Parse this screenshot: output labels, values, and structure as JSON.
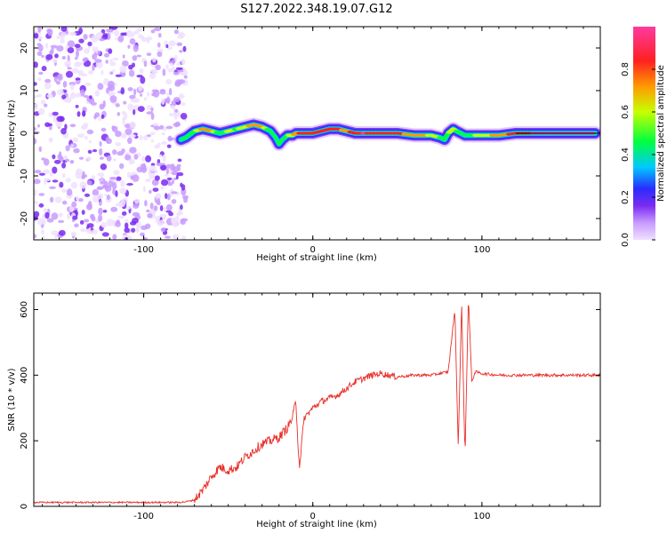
{
  "figure_title": "S127.2022.348.19.07.G12",
  "colors": {
    "axis": "#000000",
    "snr_line": "#e8302a",
    "scatter": "#7a2cf0",
    "colormap": [
      "#f0e0ff",
      "#c89bff",
      "#7a2cf0",
      "#2a2cff",
      "#00c8ff",
      "#00ff40",
      "#c8ff00",
      "#ff9a00",
      "#ff2020",
      "#ff3aa0"
    ]
  },
  "chart_data": [
    {
      "type": "heatmap",
      "title": "",
      "xlabel": "Height of straight line (km)",
      "ylabel": "Frequency (Hz)",
      "xlim": [
        -165,
        170
      ],
      "ylim": [
        -25,
        25
      ],
      "xticks": [
        -100,
        0,
        100
      ],
      "yticks": [
        -20,
        -10,
        0,
        10,
        20
      ],
      "noise_region_x": [
        -165,
        -75
      ],
      "ridge": {
        "x": [
          -78,
          -75,
          -70,
          -65,
          -60,
          -55,
          -50,
          -45,
          -40,
          -35,
          -30,
          -25,
          -22,
          -20,
          -18,
          -15,
          -12,
          -10,
          -5,
          0,
          5,
          10,
          15,
          20,
          25,
          30,
          40,
          50,
          60,
          70,
          75,
          78,
          80,
          83,
          85,
          90,
          95,
          100,
          110,
          120,
          130,
          140,
          150,
          160,
          167
        ],
        "freq": [
          -1.5,
          -1,
          0.5,
          1,
          0.5,
          0,
          0.5,
          1,
          1.5,
          2,
          1.5,
          0.5,
          -1,
          -2.5,
          -1.5,
          -0.5,
          -0.5,
          0,
          0,
          0,
          0.5,
          1,
          1,
          0.5,
          0,
          0,
          0,
          0,
          -0.5,
          -0.5,
          -1,
          -1.5,
          0,
          1,
          0.5,
          -0.5,
          -0.5,
          -0.5,
          -0.5,
          0,
          0,
          0,
          0,
          0,
          0
        ],
        "amplitude": [
          0.3,
          0.5,
          0.6,
          0.8,
          0.75,
          0.5,
          0.65,
          0.6,
          0.7,
          0.8,
          0.75,
          0.5,
          0.4,
          0.3,
          0.4,
          0.6,
          0.7,
          0.8,
          0.9,
          0.85,
          0.9,
          0.9,
          0.85,
          0.8,
          0.9,
          0.95,
          0.9,
          0.85,
          0.8,
          0.7,
          0.6,
          0.5,
          0.6,
          0.7,
          0.6,
          0.5,
          0.6,
          0.7,
          0.75,
          0.9,
          0.95,
          0.95,
          0.95,
          0.95,
          0.95
        ]
      }
    },
    {
      "type": "colorbar",
      "label": "Normalized spectral amplitude",
      "range": [
        0,
        1
      ],
      "ticks": [
        0.0,
        0.2,
        0.4,
        0.6,
        0.8
      ],
      "tick_labels": [
        "0.0",
        "0.2",
        "0.4",
        "0.6",
        "0.8"
      ]
    },
    {
      "type": "line",
      "title": "",
      "xlabel": "Height of straight line (km)",
      "ylabel": "SNR (10 * v/v)",
      "xlim": [
        -165,
        170
      ],
      "ylim": [
        0,
        650
      ],
      "xticks": [
        -100,
        0,
        100
      ],
      "yticks": [
        0,
        200,
        400,
        600
      ],
      "series": [
        {
          "x": [
            -165,
            -150,
            -130,
            -110,
            -90,
            -80,
            -75,
            -70,
            -65,
            -60,
            -55,
            -50,
            -45,
            -40,
            -35,
            -30,
            -25,
            -20,
            -15,
            -12,
            -10,
            -8,
            -5,
            0,
            5,
            10,
            15,
            20,
            25,
            30,
            35,
            40,
            45,
            50,
            60,
            70,
            80,
            84,
            86,
            88,
            90,
            92,
            94,
            96,
            100,
            110,
            120,
            130,
            140,
            150,
            160,
            170
          ],
          "values": [
            12,
            12,
            12,
            12,
            12,
            12,
            14,
            20,
            50,
            90,
            120,
            110,
            120,
            150,
            170,
            190,
            200,
            210,
            240,
            270,
            320,
            120,
            270,
            300,
            320,
            330,
            340,
            360,
            380,
            390,
            400,
            405,
            400,
            395,
            400,
            400,
            410,
            600,
            180,
            620,
            150,
            640,
            380,
            410,
            405,
            400,
            400,
            400,
            400,
            400,
            400,
            400
          ]
        }
      ]
    }
  ]
}
